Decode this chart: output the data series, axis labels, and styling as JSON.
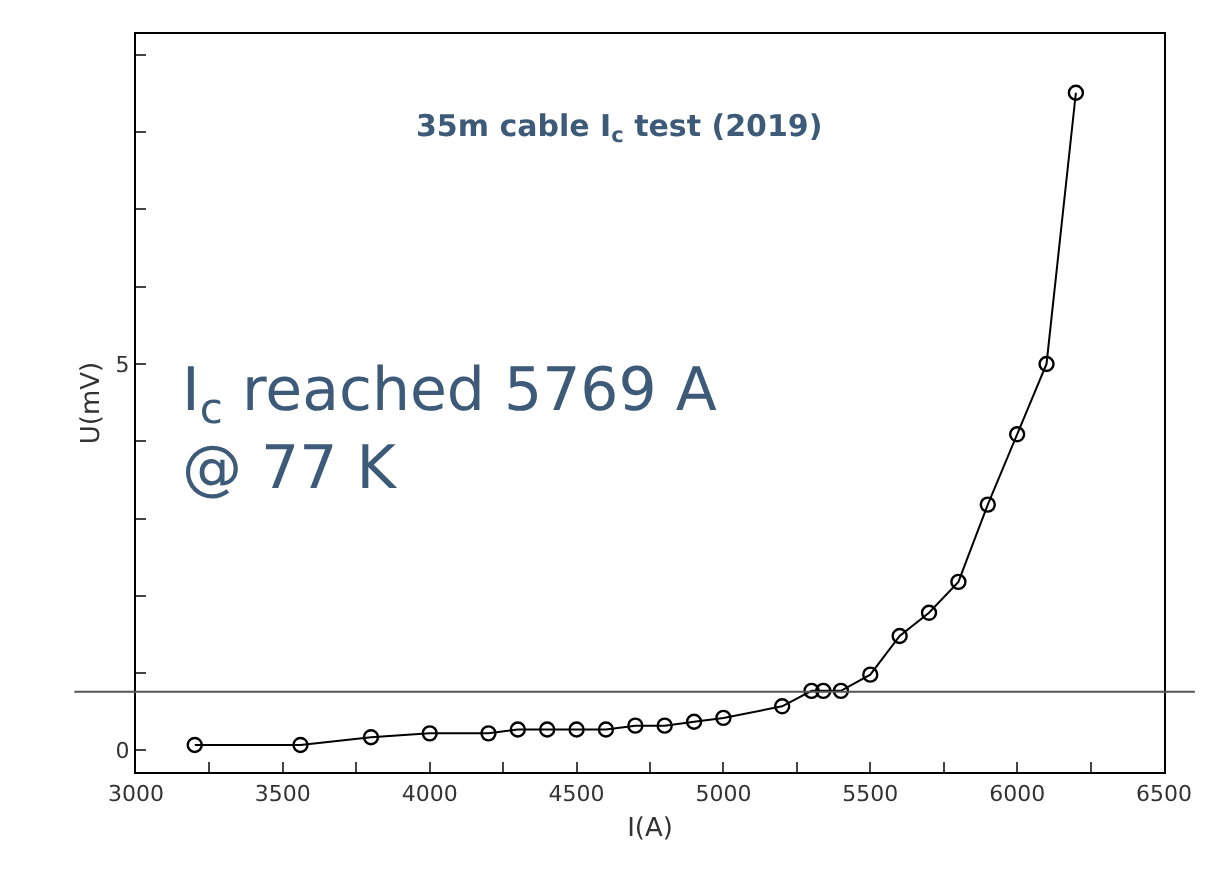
{
  "chart_data": {
    "type": "line",
    "title": "35m cable I$_{c}$ test (2019)",
    "xlabel": "I(A)",
    "ylabel": "U(mV)",
    "annotations": [
      "I$_{c}$ reached 5769 A\n@ 77 K"
    ],
    "x": [
      3200,
      3560,
      3800,
      4000,
      4200,
      4300,
      4400,
      4500,
      4600,
      4700,
      4800,
      4900,
      5000,
      5200,
      5300,
      5340,
      5400,
      5500,
      5600,
      5700,
      5800,
      5900,
      6000,
      6100,
      6200
    ],
    "series": [
      {
        "color": "#000000",
        "values": [
          0.07,
          0.07,
          0.17,
          0.22,
          0.22,
          0.27,
          0.27,
          0.27,
          0.27,
          0.32,
          0.32,
          0.37,
          0.42,
          0.57,
          0.77,
          0.77,
          0.77,
          0.98,
          1.48,
          1.78,
          2.18,
          3.18,
          4.09,
          5.0,
          8.51
        ]
      }
    ],
    "xlim": [
      3000,
      6500
    ],
    "xticks": [
      3000,
      {
        "value": 3250,
        "label": null
      },
      3500,
      {
        "value": 3750,
        "label": null
      },
      4000,
      {
        "value": 4250,
        "label": null
      },
      4500,
      {
        "value": 4750,
        "label": null
      },
      5000,
      {
        "value": 5250,
        "label": null
      },
      5500,
      {
        "value": 5750,
        "label": null
      },
      6000,
      {
        "value": 6250,
        "label": null
      },
      6500
    ],
    "ylim": [
      -0.28,
      9.27
    ],
    "yticks": [
      0,
      {
        "value": 1,
        "label": null
      },
      {
        "value": 2,
        "label": null
      },
      {
        "value": 3,
        "label": null
      },
      {
        "value": 4,
        "label": null
      },
      5,
      {
        "value": 6,
        "label": null
      },
      {
        "value": 7,
        "label": null
      },
      {
        "value": 8,
        "label": null
      },
      {
        "value": 9,
        "label": null
      }
    ],
    "ref_lines": [
      {
        "axis": "y",
        "value": 0.76,
        "color": "#555555"
      }
    ],
    "marker": "circle",
    "line_style": "solid",
    "legend": false
  }
}
